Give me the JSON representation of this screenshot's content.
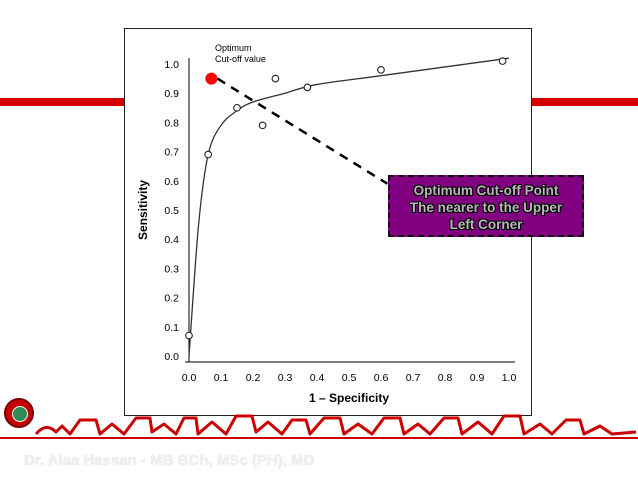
{
  "chart_data": {
    "type": "line",
    "title": "",
    "xlabel": "1 – Specificity",
    "ylabel": "Sensitivity",
    "xlim": [
      0,
      1
    ],
    "ylim": [
      0,
      1
    ],
    "x_ticks": [
      "0.0",
      "0.1",
      "0.2",
      "0.3",
      "0.4",
      "0.5",
      "0.6",
      "0.7",
      "0.8",
      "0.9",
      "1.0"
    ],
    "y_ticks": [
      "0.0",
      "0.1",
      "0.2",
      "0.3",
      "0.4",
      "0.5",
      "0.6",
      "0.7",
      "0.8",
      "0.9",
      "1.0"
    ],
    "points": [
      {
        "x": 0.0,
        "y": 0.07
      },
      {
        "x": 0.06,
        "y": 0.69
      },
      {
        "x": 0.15,
        "y": 0.85
      },
      {
        "x": 0.23,
        "y": 0.79
      },
      {
        "x": 0.27,
        "y": 0.95
      },
      {
        "x": 0.37,
        "y": 0.92
      },
      {
        "x": 0.6,
        "y": 0.98
      },
      {
        "x": 0.98,
        "y": 1.01
      }
    ],
    "curve": [
      {
        "x": 0.0,
        "y": 0.0
      },
      {
        "x": 0.03,
        "y": 0.45
      },
      {
        "x": 0.06,
        "y": 0.69
      },
      {
        "x": 0.1,
        "y": 0.79
      },
      {
        "x": 0.15,
        "y": 0.84
      },
      {
        "x": 0.2,
        "y": 0.87
      },
      {
        "x": 0.3,
        "y": 0.9
      },
      {
        "x": 0.4,
        "y": 0.93
      },
      {
        "x": 0.6,
        "y": 0.96
      },
      {
        "x": 0.8,
        "y": 0.99
      },
      {
        "x": 1.0,
        "y": 1.02
      }
    ],
    "optimum_point": {
      "x": 0.07,
      "y": 0.95,
      "label_line1": "Optimum",
      "label_line2": "Cut-off value"
    },
    "dashed_line": {
      "from": {
        "x": 0.07,
        "y": 0.95
      },
      "to": {
        "x": 0.62,
        "y": 0.59
      }
    },
    "grid": false,
    "legend": "none"
  },
  "callout": {
    "line1": "Optimum Cut-off Point",
    "line2": "The nearer to the Upper",
    "line3": "Left Corner"
  },
  "footer": {
    "text": "Dr. Alaa Hassan - MB BCh, MSc (PH), MD"
  },
  "colors": {
    "accent_red": "#d60000",
    "callout_bg": "#800080",
    "optimum_point": "#ff0000"
  }
}
